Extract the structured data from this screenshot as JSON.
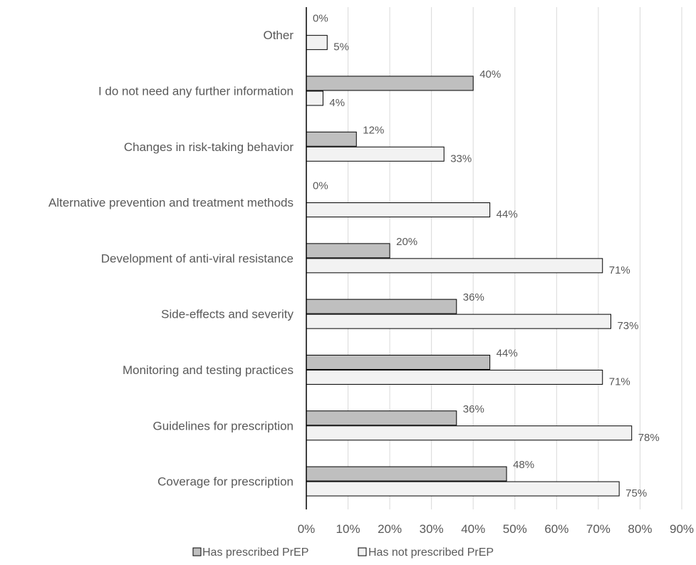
{
  "chart_data": {
    "type": "bar",
    "orientation": "horizontal",
    "categories": [
      "Other",
      "I do not need any further information",
      "Changes in risk-taking behavior",
      "Alternative prevention and treatment methods",
      "Development of anti-viral resistance",
      "Side-effects and severity",
      "Monitoring and testing practices",
      "Guidelines for prescription",
      "Coverage for prescription"
    ],
    "series": [
      {
        "name": "Has prescribed PrEP",
        "values": [
          0,
          40,
          12,
          0,
          20,
          36,
          44,
          36,
          48
        ],
        "color": "#bfbfbf"
      },
      {
        "name": "Has not prescribed PrEP",
        "values": [
          5,
          4,
          33,
          44,
          71,
          73,
          71,
          78,
          75
        ],
        "color": "#f2f2f2"
      }
    ],
    "data_labels": [
      [
        "0%",
        "40%",
        "12%",
        "0%",
        "20%",
        "36%",
        "44%",
        "36%",
        "48%"
      ],
      [
        "5%",
        "4%",
        "33%",
        "44%",
        "71%",
        "73%",
        "71%",
        "78%",
        "75%"
      ]
    ],
    "xlim": [
      0,
      90
    ],
    "xticks": [
      0,
      10,
      20,
      30,
      40,
      50,
      60,
      70,
      80,
      90
    ],
    "xtick_labels": [
      "0%",
      "10%",
      "20%",
      "30%",
      "40%",
      "50%",
      "60%",
      "70%",
      "80%",
      "90%"
    ],
    "title": "",
    "xlabel": "",
    "ylabel": "",
    "grid": "vertical",
    "legend": "bottom",
    "colors": {
      "bar_stroke": "#000000",
      "grid": "#d9d9d9",
      "axis": "#000000",
      "text": "#595959"
    }
  }
}
